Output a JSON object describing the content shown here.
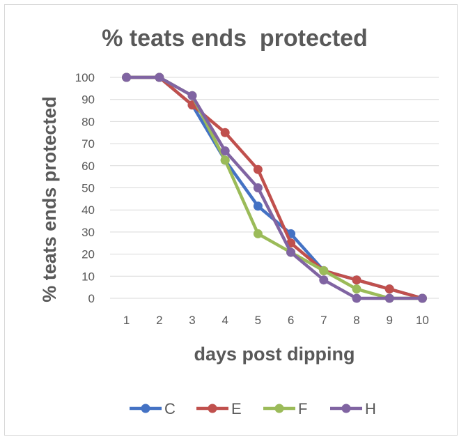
{
  "chart_data": {
    "type": "line",
    "title": "% teats ends  protected",
    "xlabel": "days post dipping",
    "ylabel": "% teats ends protected",
    "x": [
      1,
      2,
      3,
      4,
      5,
      6,
      7,
      8,
      9,
      10
    ],
    "ylim": [
      0,
      100
    ],
    "yticks": [
      0,
      10,
      20,
      30,
      40,
      50,
      60,
      70,
      80,
      90,
      100
    ],
    "grid": true,
    "legend_position": "bottom",
    "series": [
      {
        "name": "C",
        "color": "#4472C4",
        "values": [
          100,
          100,
          87.5,
          62.5,
          41.7,
          29.2,
          12.5,
          8.3,
          4.2,
          0
        ]
      },
      {
        "name": "E",
        "color": "#C0504D",
        "values": [
          100,
          100,
          87.5,
          75,
          58.3,
          25,
          12.5,
          8.3,
          4.2,
          0
        ]
      },
      {
        "name": "F",
        "color": "#9BBB59",
        "values": [
          100,
          100,
          91.7,
          62.5,
          29.2,
          20.8,
          12.5,
          4.2,
          0,
          0
        ]
      },
      {
        "name": "H",
        "color": "#8064A2",
        "values": [
          100,
          100,
          91.7,
          66.7,
          50,
          20.8,
          8.3,
          0,
          0,
          0
        ]
      }
    ]
  }
}
